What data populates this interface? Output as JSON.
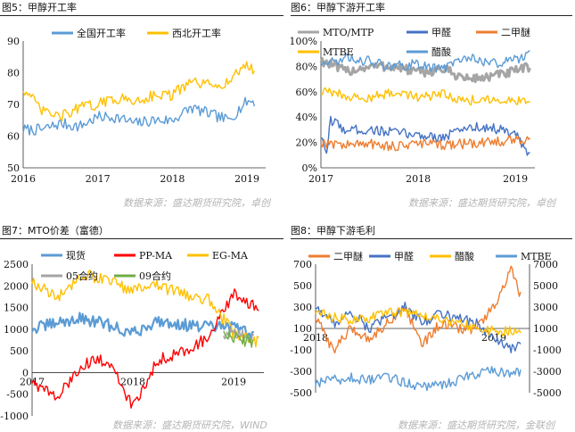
{
  "panels": [
    {
      "title": "图5：甲醇开工率"
    },
    {
      "title": "图6：甲醇下游开工率"
    },
    {
      "title": "图7：MTO价差（富德）"
    },
    {
      "title": "图8：甲醇下游毛利"
    }
  ],
  "sources": {
    "top_left": "数据来源：盛达期货研究院，卓创",
    "top_right": "数据来源：盛达期货研究院，卓创",
    "bottom_left": "数据来源：盛达期货研究院，WIND",
    "bottom_right": "数据来源：盛达期货研究院，金联创"
  },
  "chart_data": [
    {
      "type": "line",
      "title": "图5：甲醇开工率",
      "x_ticks": [
        "2016",
        "2017",
        "2018",
        "2019"
      ],
      "x_tick_pos": [
        2016.0,
        2017.0,
        2018.0,
        2019.0
      ],
      "x_range": [
        2016.0,
        2019.25
      ],
      "ylim": [
        50,
        90
      ],
      "y_ticks": [
        50,
        60,
        70,
        80,
        90
      ],
      "legend": "top",
      "series": [
        {
          "name": "全国开工率",
          "color": "#5b9bd5",
          "x": [
            2016.0,
            2016.25,
            2016.5,
            2016.75,
            2017.0,
            2017.25,
            2017.5,
            2017.75,
            2018.0,
            2018.25,
            2018.5,
            2018.75,
            2019.0,
            2019.1
          ],
          "y": [
            62,
            62,
            64,
            63,
            66,
            66,
            64,
            65,
            65,
            69,
            67,
            65,
            71,
            71
          ]
        },
        {
          "name": "西北开工率",
          "color": "#ffc000",
          "x": [
            2016.0,
            2016.25,
            2016.5,
            2016.75,
            2017.0,
            2017.25,
            2017.5,
            2017.75,
            2018.0,
            2018.25,
            2018.5,
            2018.75,
            2019.0,
            2019.1
          ],
          "y": [
            75,
            68,
            66,
            69,
            70,
            72,
            71,
            73,
            73,
            77,
            76,
            77,
            83,
            80
          ]
        }
      ]
    },
    {
      "type": "line",
      "title": "图6：甲醇下游开工率",
      "x_ticks": [
        "2017",
        "2018",
        "2019"
      ],
      "x_tick_pos": [
        2017.0,
        2018.0,
        2019.0
      ],
      "x_range": [
        2017.0,
        2019.2
      ],
      "ylim": [
        0,
        100
      ],
      "y_ticks": [
        "0%",
        "20%",
        "40%",
        "60%",
        "80%",
        "100%"
      ],
      "y_tick_vals": [
        0,
        20,
        40,
        60,
        80,
        100
      ],
      "legend": "top",
      "series": [
        {
          "name": "MTO/MTP",
          "color": "#a5a5a5",
          "x": [
            2017.0,
            2017.25,
            2017.5,
            2017.75,
            2018.0,
            2018.25,
            2018.5,
            2018.75,
            2019.0,
            2019.15
          ],
          "y": [
            85,
            76,
            80,
            80,
            75,
            78,
            70,
            72,
            76,
            80
          ]
        },
        {
          "name": "甲醛",
          "color": "#4472c4",
          "x": [
            2017.0,
            2017.05,
            2017.1,
            2017.25,
            2017.5,
            2017.75,
            2018.0,
            2018.25,
            2018.5,
            2018.75,
            2019.0,
            2019.1,
            2019.15
          ],
          "y": [
            25,
            8,
            38,
            30,
            30,
            28,
            26,
            24,
            32,
            32,
            26,
            15,
            8
          ]
        },
        {
          "name": "二甲醚",
          "color": "#ed7d31",
          "x": [
            2017.0,
            2017.25,
            2017.5,
            2017.75,
            2018.0,
            2018.25,
            2018.5,
            2018.75,
            2019.0,
            2019.15
          ],
          "y": [
            20,
            18,
            19,
            17,
            19,
            18,
            19,
            20,
            22,
            23
          ]
        },
        {
          "name": "MTBE",
          "color": "#ffc000",
          "x": [
            2017.0,
            2017.25,
            2017.5,
            2017.75,
            2018.0,
            2018.25,
            2018.5,
            2018.75,
            2019.0,
            2019.15
          ],
          "y": [
            60,
            57,
            55,
            60,
            56,
            58,
            53,
            55,
            52,
            55
          ]
        },
        {
          "name": "醋酸",
          "color": "#5b9bd5",
          "x": [
            2017.0,
            2017.25,
            2017.5,
            2017.75,
            2018.0,
            2018.25,
            2018.5,
            2018.75,
            2019.0,
            2019.15
          ],
          "y": [
            82,
            86,
            84,
            80,
            82,
            78,
            88,
            82,
            85,
            90
          ]
        }
      ]
    },
    {
      "type": "line",
      "title": "图7：MTO价差（富德）",
      "x_ticks": [
        "2017",
        "2018",
        "2019"
      ],
      "x_tick_pos": [
        2017.0,
        2018.0,
        2019.0
      ],
      "x_range": [
        2017.0,
        2019.3
      ],
      "ylim": [
        -1000,
        2500
      ],
      "y_ticks": [
        -1000,
        -500,
        0,
        500,
        1000,
        1500,
        2000,
        2500
      ],
      "legend": "top",
      "series": [
        {
          "name": "现货",
          "color": "#5b9bd5",
          "x": [
            2017.0,
            2017.25,
            2017.5,
            2017.75,
            2018.0,
            2018.25,
            2018.5,
            2018.75,
            2019.0,
            2019.2
          ],
          "y": [
            1000,
            1150,
            1250,
            1100,
            900,
            1200,
            1100,
            1050,
            1050,
            900
          ]
        },
        {
          "name": "PP-MA",
          "color": "#ff0000",
          "x": [
            2017.0,
            2017.25,
            2017.5,
            2017.75,
            2018.0,
            2018.25,
            2018.5,
            2018.75,
            2019.0,
            2019.25
          ],
          "y": [
            -200,
            -600,
            200,
            300,
            -800,
            300,
            500,
            800,
            1800,
            1500
          ]
        },
        {
          "name": "EG-MA",
          "color": "#ffc000",
          "x": [
            2017.0,
            2017.25,
            2017.5,
            2017.75,
            2018.0,
            2018.25,
            2018.5,
            2018.75,
            2019.0,
            2019.25
          ],
          "y": [
            2100,
            1700,
            2300,
            2100,
            1900,
            2000,
            1800,
            1700,
            900,
            700
          ]
        },
        {
          "name": "05合约",
          "color": "#a5a5a5",
          "x": [
            2018.9,
            2019.0,
            2019.1,
            2019.2
          ],
          "y": [
            900,
            950,
            850,
            800
          ]
        },
        {
          "name": "09合约",
          "color": "#70ad47",
          "x": [
            2018.9,
            2019.0,
            2019.1,
            2019.2
          ],
          "y": [
            1000,
            800,
            750,
            700
          ]
        }
      ]
    },
    {
      "type": "line",
      "title": "图8：甲醇下游毛利",
      "x_ticks": [
        "2018",
        "2019"
      ],
      "x_tick_pos": [
        2018.0,
        2019.0
      ],
      "x_range": [
        2018.0,
        2019.2
      ],
      "ylim_left": [
        -500,
        700
      ],
      "y_ticks_left": [
        -500,
        -300,
        -100,
        100,
        300,
        500,
        700
      ],
      "ylim_right": [
        -5000,
        7000
      ],
      "y_ticks_right": [
        -5000,
        -3000,
        -1000,
        1000,
        3000,
        5000,
        7000
      ],
      "legend": "top",
      "series": [
        {
          "name": "二甲醚",
          "color": "#ed7d31",
          "axis": "left",
          "x": [
            2018.0,
            2018.1,
            2018.2,
            2018.3,
            2018.4,
            2018.5,
            2018.6,
            2018.7,
            2018.8,
            2018.9,
            2019.0,
            2019.1,
            2019.15
          ],
          "y": [
            200,
            -100,
            100,
            0,
            150,
            300,
            -50,
            150,
            100,
            100,
            300,
            650,
            400
          ]
        },
        {
          "name": "甲醛",
          "color": "#4472c4",
          "axis": "left",
          "x": [
            2018.0,
            2018.1,
            2018.2,
            2018.3,
            2018.4,
            2018.5,
            2018.6,
            2018.7,
            2018.8,
            2018.9,
            2019.0,
            2019.1,
            2019.15
          ],
          "y": [
            300,
            150,
            250,
            100,
            200,
            300,
            150,
            250,
            200,
            150,
            0,
            -100,
            -50
          ]
        },
        {
          "name": "醋酸",
          "color": "#ffc000",
          "axis": "right",
          "x": [
            2018.0,
            2018.1,
            2018.2,
            2018.3,
            2018.4,
            2018.5,
            2018.6,
            2018.7,
            2018.8,
            2018.9,
            2019.0,
            2019.1,
            2019.15
          ],
          "y": [
            2500,
            2000,
            1800,
            2000,
            2500,
            2600,
            2200,
            2000,
            1500,
            1000,
            800,
            700,
            900
          ]
        },
        {
          "name": "MTBE",
          "color": "#5b9bd5",
          "axis": "left",
          "x": [
            2018.0,
            2018.1,
            2018.2,
            2018.3,
            2018.4,
            2018.5,
            2018.6,
            2018.7,
            2018.8,
            2018.9,
            2019.0,
            2019.1,
            2019.15
          ],
          "y": [
            -420,
            -380,
            -360,
            -380,
            -360,
            -400,
            -450,
            -420,
            -380,
            -330,
            -300,
            -320,
            -310
          ]
        }
      ]
    }
  ]
}
